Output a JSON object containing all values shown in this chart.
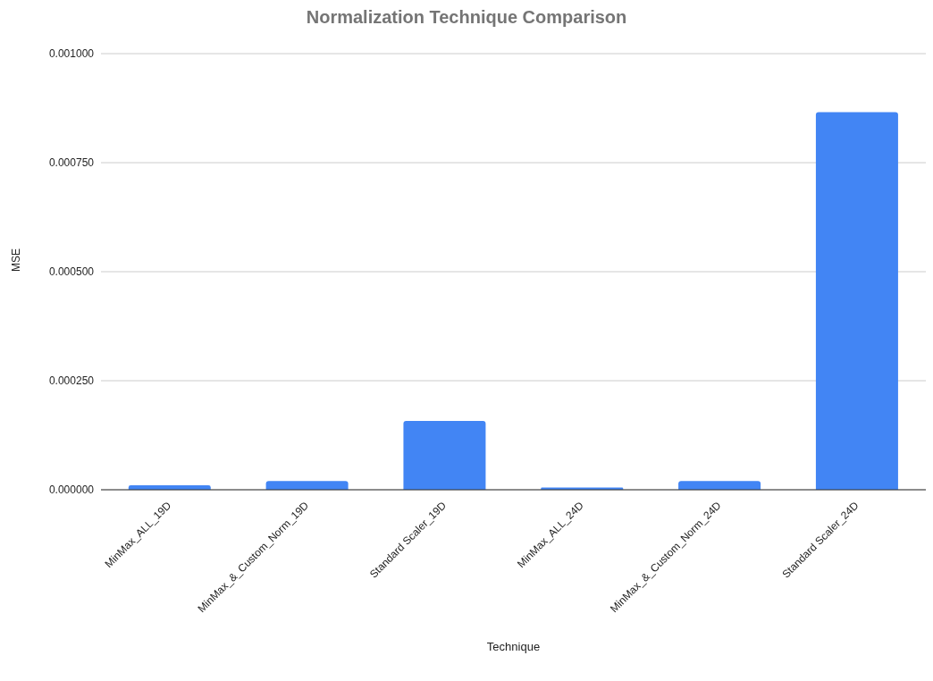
{
  "chart_data": {
    "type": "bar",
    "title": "Normalization Technique Comparison",
    "xlabel": "Technique",
    "ylabel": "MSE",
    "categories": [
      "MinMax_ALL_19D",
      "MinMax_&_Custom_Norm_19D",
      "Standard Scaler_19D",
      "MinMax_ALL_24D",
      "MinMax_&_Custom_Norm_24D",
      "Standard Scaler_24D"
    ],
    "values": [
      1e-05,
      2e-05,
      0.000158,
      5e-06,
      2e-05,
      0.000866
    ],
    "color": "#4285f4",
    "ylim": [
      0,
      0.001
    ],
    "yticks": [
      {
        "value": 0,
        "label": "0.000000"
      },
      {
        "value": 0.00025,
        "label": "0.000250"
      },
      {
        "value": 0.0005,
        "label": "0.000500"
      },
      {
        "value": 0.00075,
        "label": "0.000750"
      },
      {
        "value": 0.001,
        "label": "0.001000"
      }
    ],
    "grid": "y"
  }
}
